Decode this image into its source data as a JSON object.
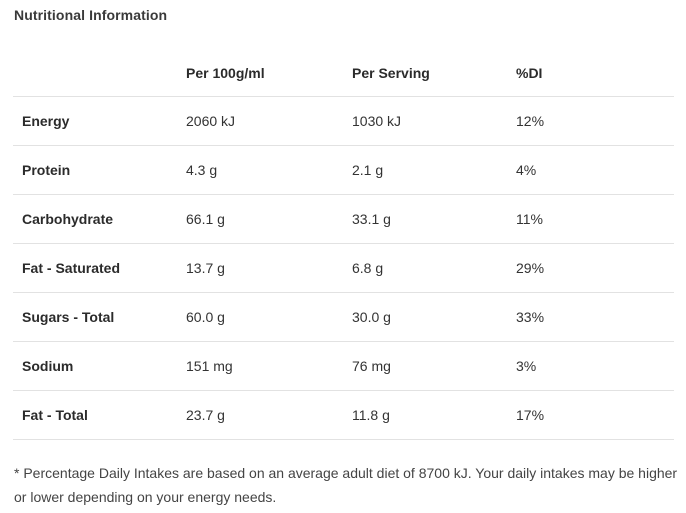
{
  "title": "Nutritional Information",
  "columns": [
    "",
    "Per 100g/ml",
    "Per Serving",
    "%DI"
  ],
  "rows": [
    {
      "name": "Energy",
      "per100": "2060 kJ",
      "serving": "1030 kJ",
      "di": "12%"
    },
    {
      "name": "Protein",
      "per100": "4.3 g",
      "serving": "2.1 g",
      "di": "4%"
    },
    {
      "name": "Carbohydrate",
      "per100": "66.1 g",
      "serving": "33.1 g",
      "di": "11%"
    },
    {
      "name": "Fat - Saturated",
      "per100": "13.7 g",
      "serving": "6.8 g",
      "di": "29%"
    },
    {
      "name": "Sugars - Total",
      "per100": "60.0 g",
      "serving": "30.0 g",
      "di": "33%"
    },
    {
      "name": "Sodium",
      "per100": "151 mg",
      "serving": "76 mg",
      "di": "3%"
    },
    {
      "name": "Fat - Total",
      "per100": "23.7 g",
      "serving": "11.8 g",
      "di": "17%"
    }
  ],
  "footnote": "* Percentage Daily Intakes are based on an average adult diet of 8700 kJ. Your daily intakes may be higher or lower depending on your energy needs."
}
